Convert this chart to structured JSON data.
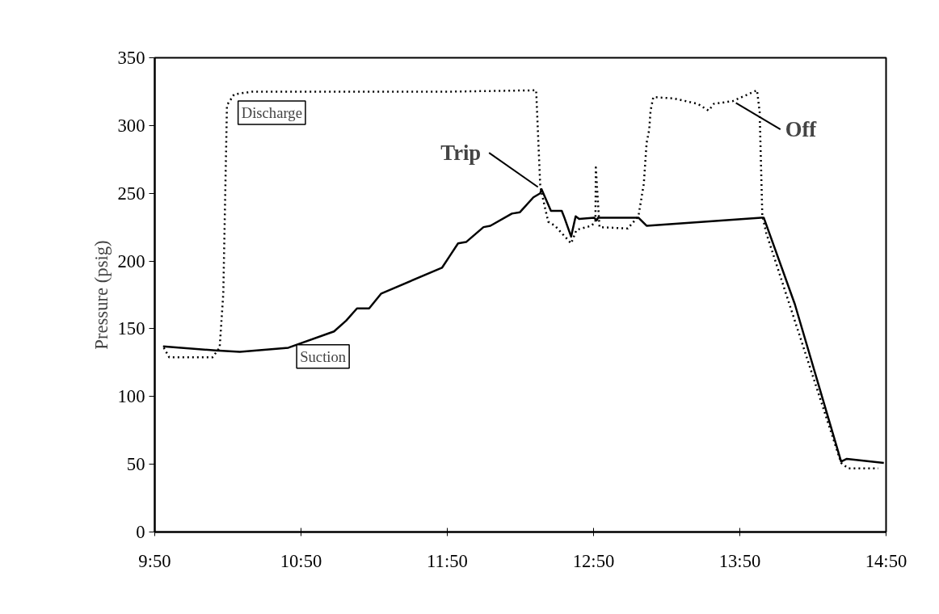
{
  "chart_data": {
    "type": "line",
    "ylabel": "Pressure (psig)",
    "xlim": [
      9.8333,
      14.8333
    ],
    "ylim": [
      0,
      350
    ],
    "xticks": [
      {
        "value": 9.8333,
        "label": "9:50"
      },
      {
        "value": 10.8333,
        "label": "10:50"
      },
      {
        "value": 11.8333,
        "label": "11:50"
      },
      {
        "value": 12.8333,
        "label": "12:50"
      },
      {
        "value": 13.8333,
        "label": "13:50"
      },
      {
        "value": 14.8333,
        "label": "14:50"
      }
    ],
    "yticks": [
      0,
      50,
      100,
      150,
      200,
      250,
      300,
      350
    ],
    "grid": false,
    "series": [
      {
        "name": "Discharge",
        "color": "#000000",
        "line_style": "dotted",
        "x": [
          9.895,
          9.932,
          10.228,
          10.277,
          10.302,
          10.327,
          10.376,
          10.5,
          11.852,
          12.441,
          12.469,
          12.523,
          12.57,
          12.68,
          12.717,
          12.818,
          12.846,
          12.849,
          12.874,
          13.067,
          13.14,
          13.177,
          13.196,
          13.214,
          13.223,
          13.242,
          13.38,
          13.546,
          13.62,
          13.656,
          13.785,
          13.951,
          13.969,
          13.987,
          14.013,
          14.526,
          14.575,
          14.78
        ],
        "values": [
          136,
          129,
          129,
          136,
          176,
          315,
          323,
          325,
          325,
          326,
          255,
          229,
          226,
          213,
          223,
          226,
          229,
          269,
          225,
          224,
          233,
          257,
          287,
          297,
          311,
          321,
          320,
          316,
          311,
          316,
          318,
          326,
          310,
          234,
          221,
          51,
          47,
          47
        ]
      },
      {
        "name": "Suction",
        "color": "#000000",
        "line_style": "solid",
        "x": [
          9.89,
          10.249,
          10.415,
          10.747,
          11.059,
          11.142,
          11.216,
          11.299,
          11.382,
          11.797,
          11.852,
          11.907,
          11.962,
          12.081,
          12.128,
          12.275,
          12.33,
          12.422,
          12.469,
          12.478,
          12.542,
          12.616,
          12.634,
          12.68,
          12.711,
          12.735,
          12.837,
          12.855,
          12.864,
          13.14,
          13.196,
          13.979,
          13.997,
          14.21,
          14.526,
          14.565,
          14.818
        ],
        "values": [
          137,
          134,
          133,
          136,
          148,
          156,
          165,
          165,
          176,
          195,
          204,
          213,
          214,
          225,
          226,
          235,
          236,
          247,
          250,
          253,
          237,
          237,
          232,
          218,
          233,
          231,
          232,
          230,
          232,
          232,
          226,
          232,
          232,
          168,
          52,
          54,
          51
        ]
      }
    ],
    "annotations": [
      {
        "text": "Trip",
        "x": 12.478,
        "y": 253
      },
      {
        "text": "Off",
        "x": 13.785,
        "y": 318
      }
    ]
  }
}
